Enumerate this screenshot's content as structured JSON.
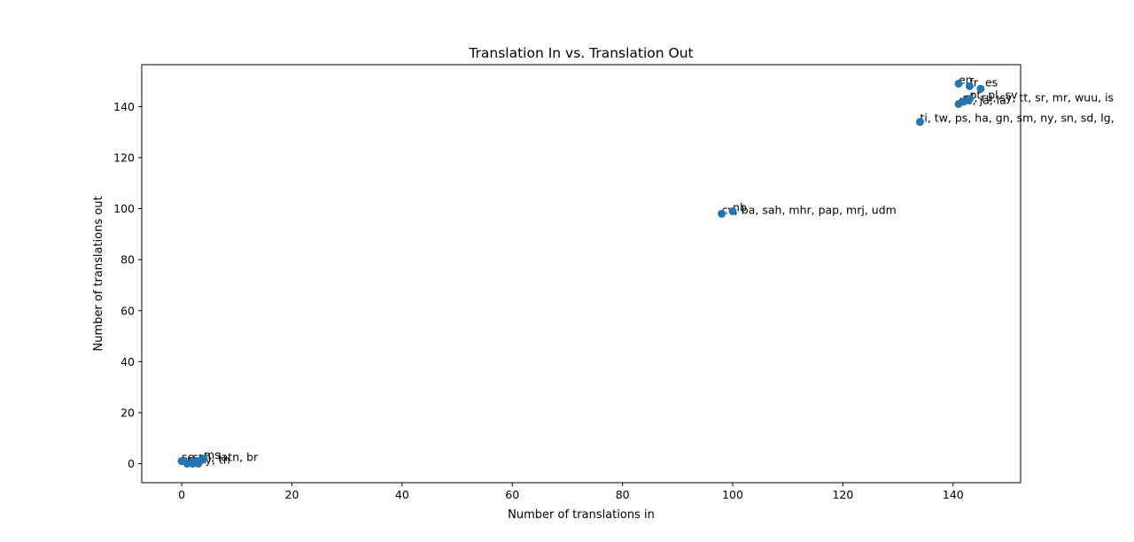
{
  "chart_data": {
    "type": "scatter",
    "title": "Translation In vs. Translation Out",
    "xlabel": "Number of translations in",
    "ylabel": "Number of translations out",
    "xlim": [
      -7.25,
      152.25
    ],
    "ylim": [
      -7.45,
      156.45
    ],
    "xticks": [
      0,
      20,
      40,
      60,
      80,
      100,
      120,
      140
    ],
    "yticks": [
      0,
      20,
      40,
      60,
      80,
      100,
      120,
      140
    ],
    "grid": false,
    "marker_color": "#1f77b4",
    "points": [
      {
        "x": 141,
        "y": 149,
        "label": "en"
      },
      {
        "x": 143,
        "y": 148,
        "label": "fr, es"
      },
      {
        "x": 145,
        "y": 147,
        "label": ""
      },
      {
        "x": 143,
        "y": 143,
        "label": "pt, pl, sv"
      },
      {
        "x": 142,
        "y": 142,
        "label": "nl, ru, sy, tt, sr, mr, wuu, is"
      },
      {
        "x": 141,
        "y": 141,
        "label": "de, ja, la"
      },
      {
        "x": 134,
        "y": 134,
        "label": "ti, tw, ps, ha, gn, sm, ny, sn, sd, lg,"
      },
      {
        "x": 100,
        "y": 99,
        "label": "nb"
      },
      {
        "x": 98,
        "y": 98,
        "label": "cv, ba, sah, mhr, pap, mrj, udm"
      },
      {
        "x": 0,
        "y": 1,
        "label": "se"
      },
      {
        "x": 1,
        "y": 0,
        "label": "sq"
      },
      {
        "x": 2,
        "y": 0,
        "label": "en"
      },
      {
        "x": 2,
        "y": 1,
        "label": "sr"
      },
      {
        "x": 3,
        "y": 0,
        "label": "py, th"
      },
      {
        "x": 3,
        "y": 1,
        "label": "zh, latn, br"
      },
      {
        "x": 4,
        "y": 2,
        "label": "ms"
      }
    ]
  }
}
